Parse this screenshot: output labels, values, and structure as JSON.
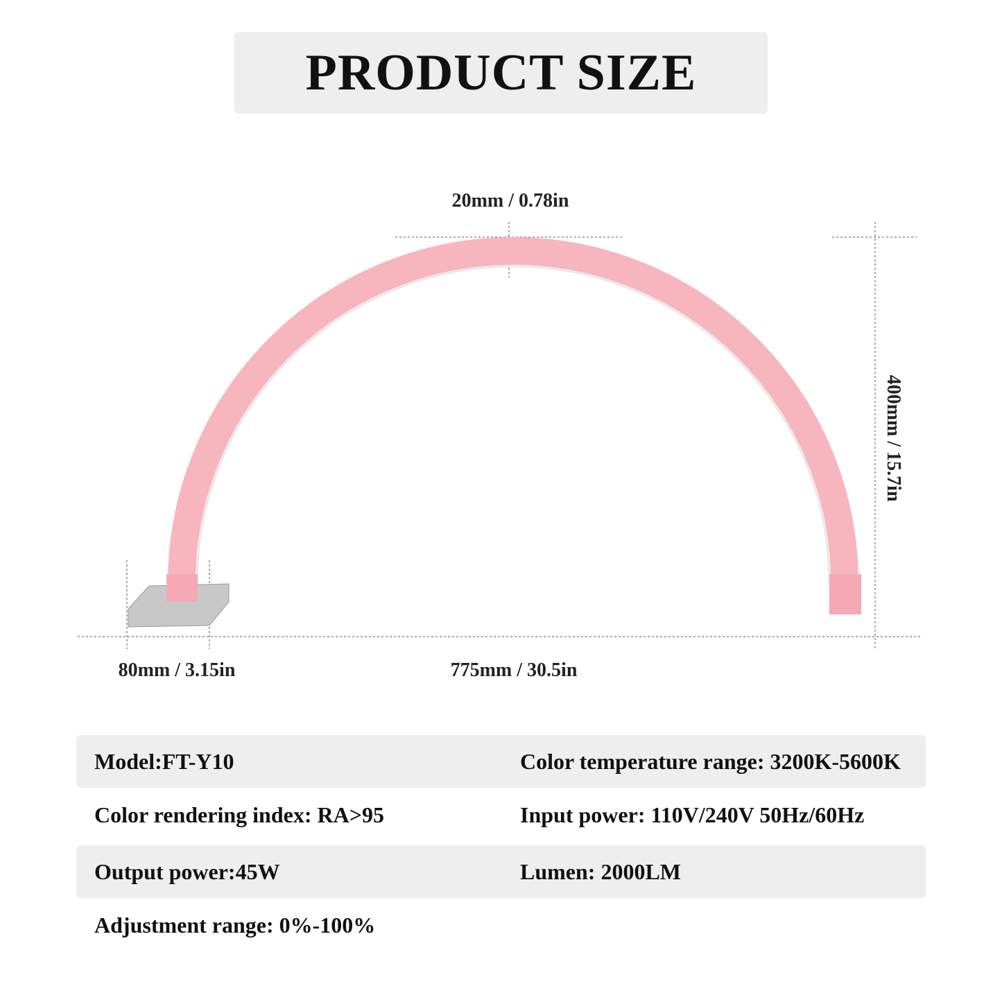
{
  "header": {
    "title": "PRODUCT SIZE"
  },
  "dimensions": {
    "thickness": "20mm / 0.78in",
    "height": "400mm / 15.7in",
    "base_width": "80mm / 3.15in",
    "width": "775mm / 30.5in"
  },
  "specs": {
    "rows": [
      [
        "Model:FT-Y10",
        "Color temperature range: 3200K-5600K"
      ],
      [
        "Color rendering index: RA>95",
        "Input power: 110V/240V 50Hz/60Hz"
      ],
      [
        "Output power:45W",
        "Lumen: 2000LM"
      ],
      [
        "Adjustment range: 0%-100%"
      ]
    ]
  }
}
